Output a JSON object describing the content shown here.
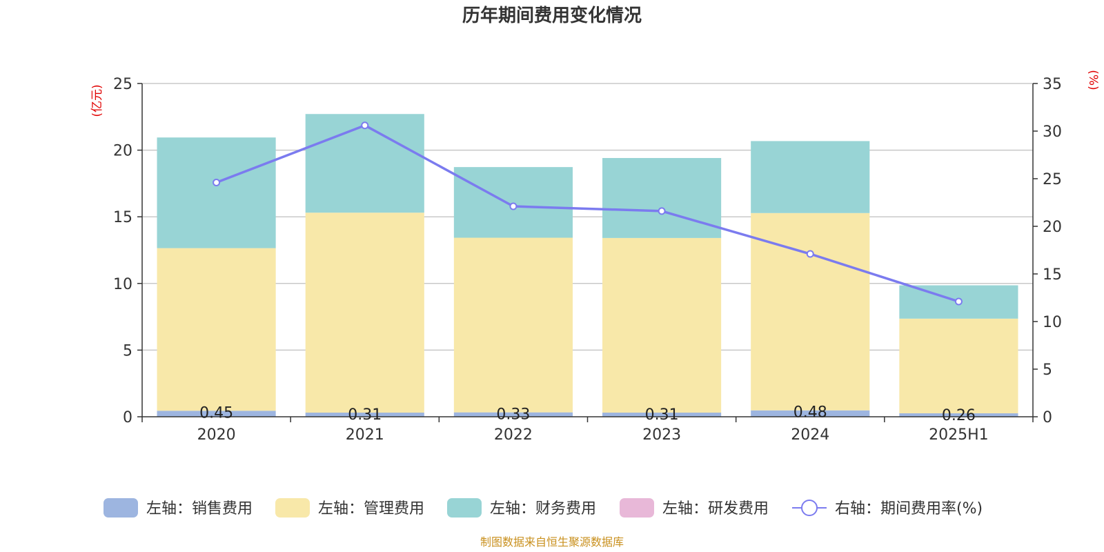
{
  "chart_data": {
    "type": "bar",
    "title": "历年期间费用变化情况",
    "categories": [
      "2020",
      "2021",
      "2022",
      "2023",
      "2024",
      "2025H1"
    ],
    "left_axis": {
      "unit": "(亿元)",
      "ylim": [
        0,
        25
      ],
      "ticks": [
        0,
        5,
        10,
        15,
        20,
        25
      ]
    },
    "right_axis": {
      "unit": "(%)",
      "ylim": [
        0,
        35
      ],
      "ticks": [
        0,
        5,
        10,
        15,
        20,
        25,
        30,
        35
      ]
    },
    "series": [
      {
        "name": "左轴：销售费用",
        "type": "bar",
        "stack": "total",
        "color": "#9db5e0",
        "values": [
          0.45,
          0.31,
          0.33,
          0.31,
          0.48,
          0.26
        ],
        "labels": [
          "0.45",
          "0.31",
          "0.33",
          "0.31",
          "0.48",
          "0.26"
        ]
      },
      {
        "name": "左轴：管理费用",
        "type": "bar",
        "stack": "total",
        "color": "#f8e8a9",
        "values": [
          12.2,
          15.0,
          13.1,
          13.1,
          14.8,
          7.1
        ]
      },
      {
        "name": "左轴：财务费用",
        "type": "bar",
        "stack": "total",
        "color": "#98d4d5",
        "values": [
          8.3,
          7.4,
          5.3,
          6.0,
          5.4,
          2.5
        ]
      },
      {
        "name": "左轴：研发费用",
        "type": "bar",
        "stack": "total",
        "color": "#e8b8d8",
        "values": [
          0,
          0,
          0,
          0,
          0,
          0
        ]
      },
      {
        "name": "右轴：期间费用率(%)",
        "type": "line",
        "axis": "right",
        "color": "#7b7bef",
        "values": [
          24.6,
          30.6,
          22.1,
          21.6,
          17.1,
          12.1
        ]
      }
    ],
    "grid": true,
    "legend_position": "bottom"
  },
  "footer": {
    "source": "制图数据来自恒生聚源数据库"
  }
}
